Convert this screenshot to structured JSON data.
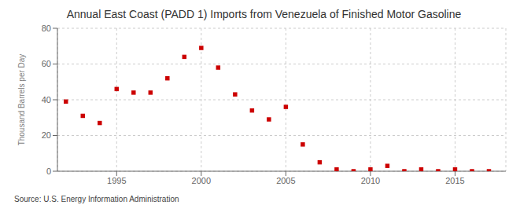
{
  "chart_data": {
    "type": "scatter",
    "title": "Annual East Coast (PADD 1) Imports from Venezuela of Finished Motor Gasoline",
    "ylabel": "Thousand Barrels per Day",
    "annotations": [
      "Source: U.S. Energy Information Administration"
    ],
    "x": [
      1992,
      1993,
      1994,
      1995,
      1996,
      1997,
      1998,
      1999,
      2000,
      2001,
      2002,
      2003,
      2004,
      2005,
      2006,
      2007,
      2008,
      2009,
      2010,
      2011,
      2012,
      2013,
      2014,
      2015,
      2016,
      2017
    ],
    "values": [
      39,
      31,
      27,
      46,
      44,
      44,
      52,
      64,
      69,
      58,
      43,
      34,
      29,
      36,
      15,
      5,
      1,
      0,
      1,
      3,
      0,
      1,
      0,
      1,
      0,
      0
    ],
    "color": "#cc0000",
    "marker": "square",
    "xlim": [
      1991.5,
      2018
    ],
    "xticks": [
      1995,
      2000,
      2005,
      2010,
      2015
    ],
    "ylim": [
      0,
      80
    ],
    "yticks": [
      0,
      20,
      40,
      60,
      80
    ],
    "grid": true
  }
}
